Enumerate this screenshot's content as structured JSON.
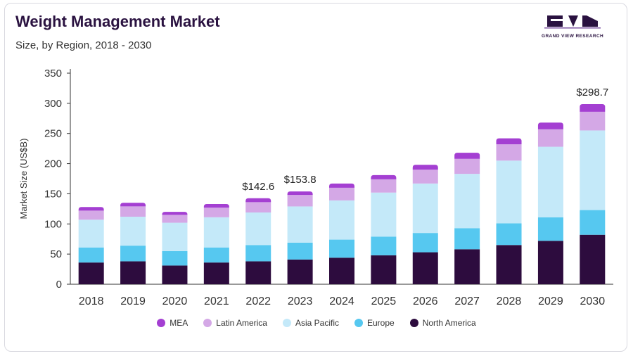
{
  "header": {
    "title": "Weight Management Market",
    "subtitle": "Size, by Region, 2018 - 2030"
  },
  "logo": {
    "text": "GRAND VIEW RESEARCH"
  },
  "chart_data": {
    "type": "bar",
    "stacked": true,
    "categories": [
      "2018",
      "2019",
      "2020",
      "2021",
      "2022",
      "2023",
      "2024",
      "2025",
      "2026",
      "2027",
      "2028",
      "2029",
      "2030"
    ],
    "series": [
      {
        "name": "North America",
        "color": "#2d0c3e",
        "values": [
          36,
          38,
          31,
          36,
          38,
          41,
          44,
          48,
          53,
          58,
          65,
          72,
          82
        ]
      },
      {
        "name": "Europe",
        "color": "#56c8f0",
        "values": [
          25,
          26,
          24,
          25,
          27,
          28,
          30,
          31,
          32,
          35,
          36,
          39,
          41
        ]
      },
      {
        "name": "Asia Pacific",
        "color": "#c4e9f9",
        "values": [
          46,
          48,
          47,
          50,
          54,
          60,
          65,
          73,
          82,
          90,
          104,
          117,
          132
        ]
      },
      {
        "name": "Latin America",
        "color": "#d4a8e6",
        "values": [
          15,
          17,
          13,
          16,
          17,
          19,
          21,
          22,
          23,
          25,
          27,
          29,
          31
        ]
      },
      {
        "name": "MEA",
        "color": "#a43fd2",
        "values": [
          6,
          6,
          5,
          6,
          6.6,
          5.8,
          7,
          7,
          8,
          10,
          10,
          11,
          12.7
        ]
      }
    ],
    "data_labels": [
      {
        "category": "2022",
        "text": "$142.6"
      },
      {
        "category": "2023",
        "text": "$153.8"
      },
      {
        "category": "2030",
        "text": "$298.7"
      }
    ],
    "ylabel": "Market Size (US$B)",
    "xlabel": "",
    "ylim": [
      0,
      350
    ],
    "yticks": [
      0,
      50,
      100,
      150,
      200,
      250,
      300,
      350
    ],
    "grid": false,
    "legend_position": "bottom",
    "legend_order": [
      "MEA",
      "Latin America",
      "Asia Pacific",
      "Europe",
      "North America"
    ]
  }
}
